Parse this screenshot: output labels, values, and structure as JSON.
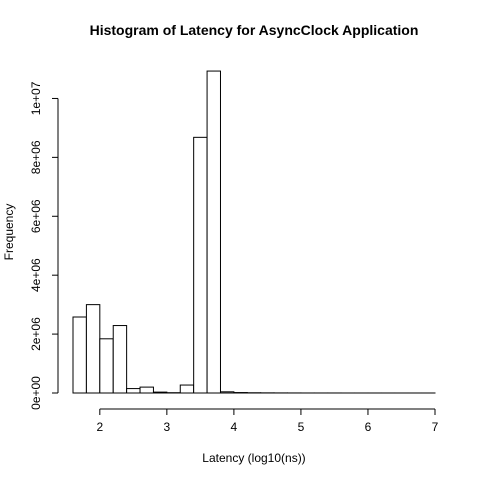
{
  "chart_data": {
    "type": "bar",
    "title": "Histogram of Latency for AsyncClock Application",
    "xlabel": "Latency (log10(ns))",
    "ylabel": "Frequency",
    "xlim": [
      1.6,
      7.0
    ],
    "ylim": [
      0,
      11000000
    ],
    "x_ticks": [
      2,
      3,
      4,
      5,
      6,
      7
    ],
    "x_tick_labels": [
      "2",
      "3",
      "4",
      "5",
      "6",
      "7"
    ],
    "y_ticks": [
      0,
      2000000,
      4000000,
      6000000,
      8000000,
      10000000
    ],
    "y_tick_labels": [
      "0e+00",
      "2e+06",
      "4e+06",
      "6e+06",
      "8e+06",
      "1e+07"
    ],
    "bin_width": 0.2,
    "bins": [
      {
        "start": 1.6,
        "end": 1.8,
        "value": 2580000
      },
      {
        "start": 1.8,
        "end": 2.0,
        "value": 3000000
      },
      {
        "start": 2.0,
        "end": 2.2,
        "value": 1840000
      },
      {
        "start": 2.2,
        "end": 2.4,
        "value": 2290000
      },
      {
        "start": 2.4,
        "end": 2.6,
        "value": 150000
      },
      {
        "start": 2.6,
        "end": 2.8,
        "value": 200000
      },
      {
        "start": 2.8,
        "end": 3.0,
        "value": 30000
      },
      {
        "start": 3.0,
        "end": 3.2,
        "value": 10000
      },
      {
        "start": 3.2,
        "end": 3.4,
        "value": 270000
      },
      {
        "start": 3.4,
        "end": 3.6,
        "value": 8680000
      },
      {
        "start": 3.6,
        "end": 3.8,
        "value": 10930000
      },
      {
        "start": 3.8,
        "end": 4.0,
        "value": 40000
      },
      {
        "start": 4.0,
        "end": 4.2,
        "value": 15000
      },
      {
        "start": 4.2,
        "end": 4.4,
        "value": 8000
      },
      {
        "start": 4.4,
        "end": 4.6,
        "value": 5000
      },
      {
        "start": 4.6,
        "end": 4.8,
        "value": 3000
      },
      {
        "start": 4.8,
        "end": 5.0,
        "value": 2000
      },
      {
        "start": 5.0,
        "end": 5.2,
        "value": 1000
      },
      {
        "start": 5.2,
        "end": 5.4,
        "value": 1000
      },
      {
        "start": 5.4,
        "end": 5.6,
        "value": 1000
      },
      {
        "start": 5.6,
        "end": 5.8,
        "value": 500
      },
      {
        "start": 5.8,
        "end": 6.0,
        "value": 500
      },
      {
        "start": 6.0,
        "end": 6.2,
        "value": 500
      },
      {
        "start": 6.2,
        "end": 6.4,
        "value": 500
      },
      {
        "start": 6.4,
        "end": 6.6,
        "value": 300
      },
      {
        "start": 6.6,
        "end": 6.8,
        "value": 300
      },
      {
        "start": 6.8,
        "end": 7.0,
        "value": 300
      }
    ],
    "grid": false,
    "legend": "none"
  }
}
